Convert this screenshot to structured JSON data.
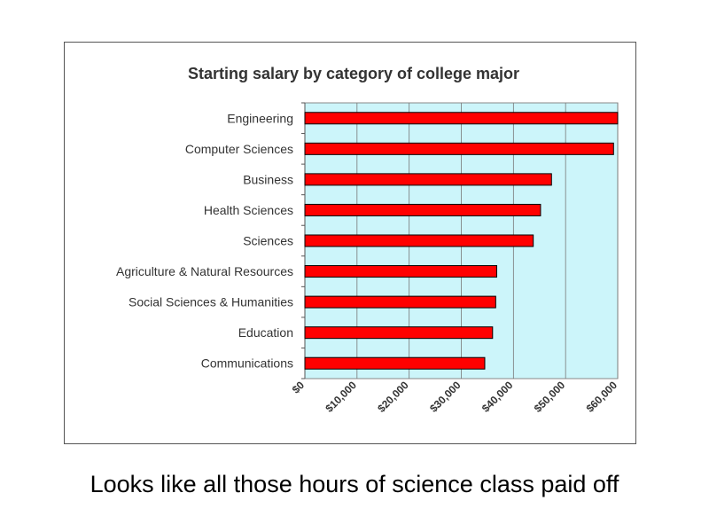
{
  "chart_data": {
    "type": "bar",
    "orientation": "horizontal",
    "title": "Starting salary by category of college major",
    "xlabel": "",
    "ylabel": "",
    "categories": [
      "Engineering",
      "Computer Sciences",
      "Business",
      "Health Sciences",
      "Sciences",
      "Agriculture & Natural Resources",
      "Social Sciences & Humanities",
      "Education",
      "Communications"
    ],
    "values": [
      60000,
      59200,
      47300,
      45200,
      43800,
      36800,
      36600,
      36000,
      34500
    ],
    "xlim": [
      0,
      60000
    ],
    "x_ticks": [
      "$0",
      "$10,000",
      "$20,000",
      "$30,000",
      "$40,000",
      "$50,000",
      "$60,000"
    ],
    "grid": "vertical",
    "legend": "none",
    "colors": {
      "bar": "#ff0000",
      "bar_edge": "#000000",
      "plot_background": "#ccf5fa",
      "gridline": "#777777"
    }
  },
  "caption": "Looks like all those hours of science class paid off"
}
